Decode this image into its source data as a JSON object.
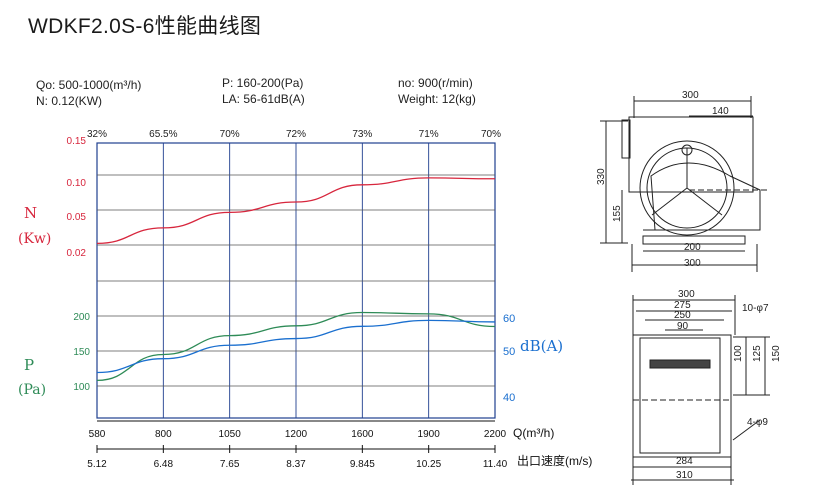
{
  "title": "WDKF2.0S-6性能曲线图",
  "specs": {
    "q": "Qo: 500-1000(m³/h)",
    "n": "N: 0.12(KW)",
    "p": "P: 160-200(Pa)",
    "la": "LA: 56-61dB(A)",
    "no": "no: 900(r/min)",
    "weight": "Weight: 12(kg)"
  },
  "colors": {
    "power": "#d7263d",
    "pressure": "#2e8b57",
    "noise": "#1a6fcf",
    "grid": "#1f3f8f"
  },
  "chart_data": {
    "type": "line",
    "x_axis": {
      "label": "Q(m³/h)",
      "ticks": [
        "580",
        "800",
        "1050",
        "1200",
        "1600",
        "1900",
        "2200"
      ],
      "range": [
        580,
        2200
      ]
    },
    "x_axis_2": {
      "label": "出口速度(m/s)",
      "ticks": [
        "5.12",
        "6.48",
        "7.65",
        "8.37",
        "9.845",
        "10.25",
        "11.40"
      ]
    },
    "efficiency_labels": [
      "32%",
      "65.5%",
      "70%",
      "72%",
      "73%",
      "71%",
      "70%"
    ],
    "left_axis_N": {
      "label_1": "N",
      "label_2": "(Kw)",
      "ticks": [
        "0.15",
        "0.10",
        "0.05",
        "0.02"
      ],
      "range": [
        0.02,
        0.15
      ]
    },
    "left_axis_P": {
      "label_1": "P",
      "label_2": "(Pa)",
      "ticks": [
        "200",
        "150",
        "100"
      ],
      "range": [
        100,
        200
      ]
    },
    "right_axis_dB": {
      "label": "dB(A)",
      "ticks": [
        "60",
        "50",
        "40"
      ],
      "range": [
        40,
        60
      ]
    },
    "series": [
      {
        "key": "N",
        "x": [
          580,
          800,
          1050,
          1200,
          1600,
          1900,
          2200
        ],
        "values": [
          0.03,
          0.048,
          0.066,
          0.078,
          0.098,
          0.106,
          0.105
        ]
      },
      {
        "key": "P",
        "x": [
          580,
          800,
          1050,
          1200,
          1600,
          1900,
          2200
        ],
        "values": [
          108,
          145,
          172,
          186,
          205,
          203,
          185
        ]
      },
      {
        "key": "dB",
        "x": [
          580,
          800,
          1050,
          1200,
          1600,
          1900,
          2200
        ],
        "values": [
          46.2,
          49.7,
          53.1,
          54.8,
          57.9,
          59.4,
          59.0
        ]
      }
    ]
  },
  "dimensions": {
    "top": {
      "width_300": "300",
      "width_140": "140",
      "height_330": "330",
      "height_155": "155",
      "base_200": "200",
      "base_300": "300"
    },
    "bottom": {
      "d300": "300",
      "d275": "275",
      "d250": "250",
      "d90": "90",
      "holes_top": "10-φ7",
      "h100": "100",
      "h125": "125",
      "h150": "150",
      "holes_bottom": "4-φ9",
      "d284": "284",
      "d310": "310"
    }
  }
}
